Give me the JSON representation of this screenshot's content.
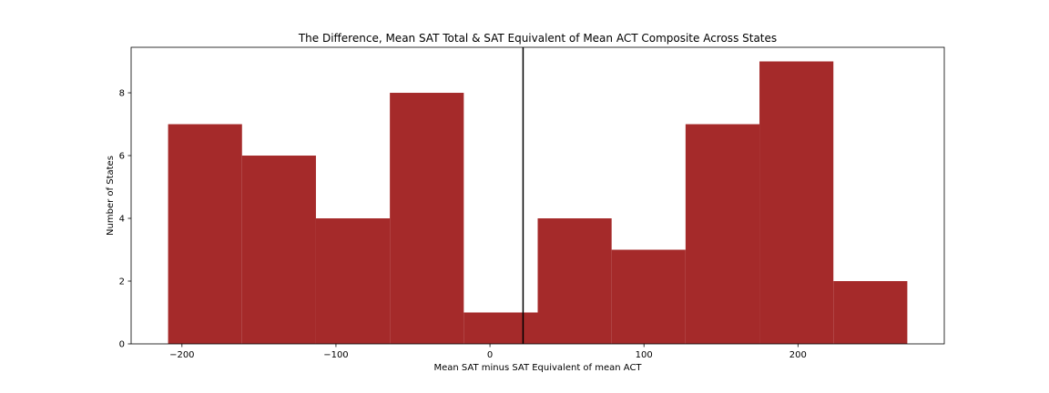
{
  "chart_data": {
    "type": "bar",
    "title": "The Difference, Mean SAT Total & SAT Equivalent of Mean ACT Composite Across States",
    "xlabel": "Mean SAT minus SAT Equivalent of mean ACT",
    "ylabel": "Number of States",
    "xlim": [
      -233,
      295
    ],
    "ylim": [
      0,
      9.45
    ],
    "xticks": [
      -200,
      -100,
      0,
      100,
      200
    ],
    "xtick_labels": [
      "−200",
      "−100",
      "0",
      "100",
      "200"
    ],
    "yticks": [
      0,
      2,
      4,
      6,
      8
    ],
    "ytick_labels": [
      "0",
      "2",
      "4",
      "6",
      "8"
    ],
    "bins": [
      {
        "x0": -209,
        "x1": -161,
        "count": 7
      },
      {
        "x0": -161,
        "x1": -113,
        "count": 6
      },
      {
        "x0": -113,
        "x1": -65,
        "count": 4
      },
      {
        "x0": -65,
        "x1": -17,
        "count": 8
      },
      {
        "x0": -17,
        "x1": 31,
        "count": 1
      },
      {
        "x0": 31,
        "x1": 79,
        "count": 4
      },
      {
        "x0": 79,
        "x1": 127,
        "count": 3
      },
      {
        "x0": 127,
        "x1": 175,
        "count": 7
      },
      {
        "x0": 175,
        "x1": 223,
        "count": 9
      },
      {
        "x0": 223,
        "x1": 271,
        "count": 2
      }
    ],
    "vline_x": 21.5,
    "bar_color": "#a52a2a",
    "vline_color": "#000000",
    "grid": false,
    "legend": "none"
  }
}
